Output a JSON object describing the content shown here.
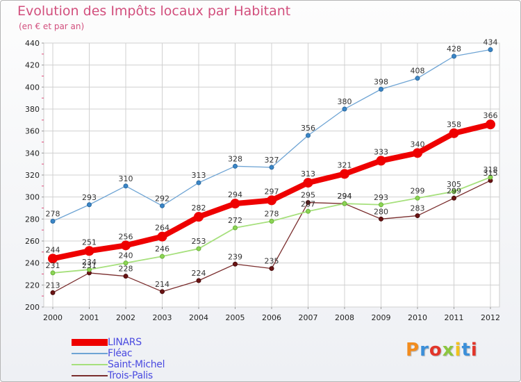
{
  "header": {
    "title": "Evolution des Impôts locaux par Habitant",
    "subtitle": "(en € et par an)"
  },
  "logo": {
    "text": "Proxiti",
    "colors": [
      "#f28c1e",
      "#3b8fd9",
      "#e2352a",
      "#8cc63f",
      "#f2c21e",
      "#3b8fd9",
      "#e2352a"
    ]
  },
  "chart_data": {
    "type": "line",
    "title": "Evolution des Impôts locaux par Habitant",
    "subtitle": "(en € et par an)",
    "x": [
      "2000",
      "2001",
      "2002",
      "2003",
      "2004",
      "2005",
      "2006",
      "2007",
      "2008",
      "2009",
      "2010",
      "2011",
      "2012"
    ],
    "ylim": [
      200,
      440
    ],
    "yticks": [
      200,
      220,
      240,
      260,
      280,
      300,
      320,
      340,
      360,
      380,
      400,
      420,
      440
    ],
    "grid": true,
    "legend": "bottom-left",
    "series": [
      {
        "name": "LINARS",
        "color": "#ee0000",
        "values": [
          244,
          251,
          256,
          264,
          282,
          294,
          297,
          313,
          321,
          333,
          340,
          358,
          366
        ]
      },
      {
        "name": "Fléac",
        "color": "#6ea4d4",
        "values": [
          278,
          293,
          310,
          292,
          313,
          328,
          327,
          356,
          380,
          398,
          408,
          428,
          434
        ]
      },
      {
        "name": "Saint-Michel",
        "color": "#a6e07c",
        "values": [
          231,
          234,
          240,
          246,
          253,
          272,
          278,
          287,
          294,
          293,
          299,
          305,
          318
        ]
      },
      {
        "name": "Trois-Palis",
        "color": "#7a2d2d",
        "values": [
          213,
          231,
          228,
          214,
          224,
          239,
          235,
          295,
          294,
          280,
          283,
          299,
          315
        ]
      }
    ]
  }
}
